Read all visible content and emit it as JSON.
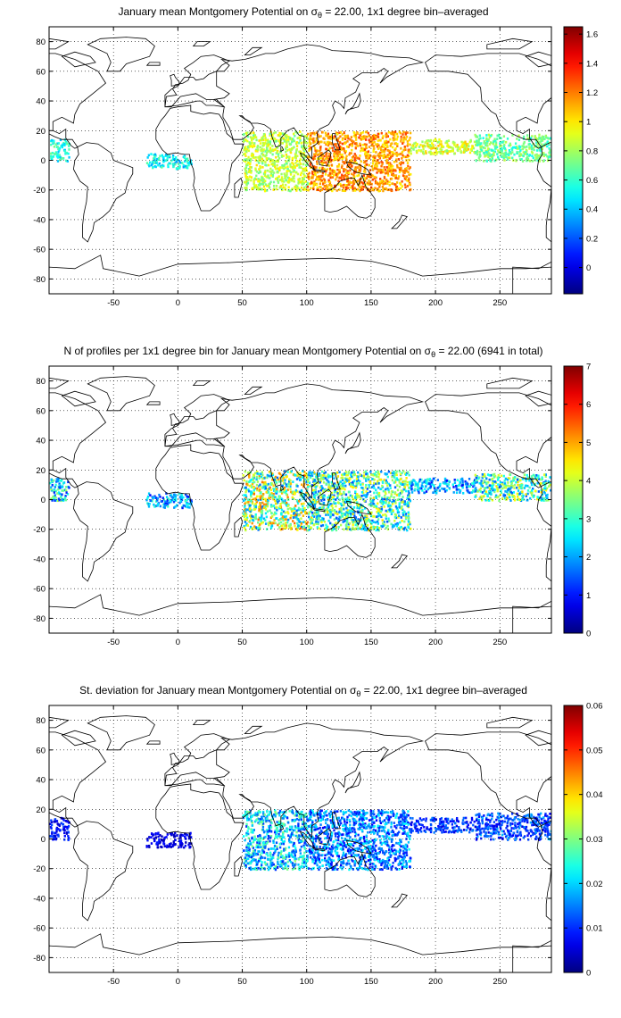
{
  "chart_data": [
    {
      "type": "heatmap",
      "title": {
        "before": "January mean Montgomery Potential on σ",
        "sub": "θ",
        "after": " = 22.00, 1x1 degree bin–averaged"
      },
      "x_ticks": [
        "-50",
        "0",
        "50",
        "100",
        "150",
        "200",
        "250"
      ],
      "x_tick_values": [
        -50,
        0,
        50,
        100,
        150,
        200,
        250
      ],
      "y_ticks": [
        "-80",
        "-60",
        "-40",
        "-20",
        "0",
        "20",
        "40",
        "60",
        "80"
      ],
      "y_tick_values": [
        -80,
        -60,
        -40,
        -20,
        0,
        20,
        40,
        60,
        80
      ],
      "xlim": [
        -100,
        290
      ],
      "ylim": [
        -90,
        90
      ],
      "grid": true,
      "colorbar": {
        "ticks": [
          "0",
          "0.2",
          "0.4",
          "0.6",
          "0.8",
          "1",
          "1.2",
          "1.4",
          "1.6"
        ],
        "tick_values": [
          0,
          0.2,
          0.4,
          0.6,
          0.8,
          1.0,
          1.2,
          1.4,
          1.6
        ],
        "min": -0.18,
        "max": 1.65,
        "colormap": "jet"
      },
      "data_regions": [
        {
          "lon": [
            -100,
            -85
          ],
          "lat": [
            0,
            15
          ],
          "value": 0.55
        },
        {
          "lon": [
            -25,
            10
          ],
          "lat": [
            -5,
            5
          ],
          "value": 0.5
        },
        {
          "lon": [
            50,
            100
          ],
          "lat": [
            -20,
            20
          ],
          "value": 0.85
        },
        {
          "lon": [
            100,
            180
          ],
          "lat": [
            -20,
            20
          ],
          "value": 1.15
        },
        {
          "lon": [
            180,
            230
          ],
          "lat": [
            5,
            15
          ],
          "value": 0.9
        },
        {
          "lon": [
            230,
            290
          ],
          "lat": [
            0,
            18
          ],
          "value": 0.7
        }
      ]
    },
    {
      "type": "heatmap",
      "title": {
        "before": "N of profiles per 1x1 degree bin for January mean Montgomery Potential on σ",
        "sub": "θ",
        "after": " = 22.00 (6941 in total)"
      },
      "x_ticks": [
        "-50",
        "0",
        "50",
        "100",
        "150",
        "200",
        "250"
      ],
      "x_tick_values": [
        -50,
        0,
        50,
        100,
        150,
        200,
        250
      ],
      "y_ticks": [
        "-80",
        "-60",
        "-40",
        "-20",
        "0",
        "20",
        "40",
        "60",
        "80"
      ],
      "y_tick_values": [
        -80,
        -60,
        -40,
        -20,
        0,
        20,
        40,
        60,
        80
      ],
      "xlim": [
        -100,
        290
      ],
      "ylim": [
        -90,
        90
      ],
      "grid": true,
      "colorbar": {
        "ticks": [
          "0",
          "1",
          "2",
          "3",
          "4",
          "5",
          "6",
          "7"
        ],
        "tick_values": [
          0,
          1,
          2,
          3,
          4,
          5,
          6,
          7
        ],
        "min": 0,
        "max": 7,
        "colormap": "jet"
      },
      "data_regions": [
        {
          "lon": [
            -100,
            -85
          ],
          "lat": [
            0,
            15
          ],
          "value": 2.5
        },
        {
          "lon": [
            -25,
            10
          ],
          "lat": [
            -5,
            5
          ],
          "value": 2.0
        },
        {
          "lon": [
            50,
            100
          ],
          "lat": [
            -20,
            20
          ],
          "value": 3.5
        },
        {
          "lon": [
            100,
            180
          ],
          "lat": [
            -20,
            20
          ],
          "value": 3.0
        },
        {
          "lon": [
            180,
            230
          ],
          "lat": [
            5,
            15
          ],
          "value": 2.0
        },
        {
          "lon": [
            230,
            290
          ],
          "lat": [
            0,
            18
          ],
          "value": 3.0
        }
      ]
    },
    {
      "type": "heatmap",
      "title": {
        "before": "St. deviation for January mean Montgomery Potential on σ",
        "sub": "θ",
        "after": " = 22.00, 1x1 degree bin–averaged"
      },
      "x_ticks": [
        "-50",
        "0",
        "50",
        "100",
        "150",
        "200",
        "250"
      ],
      "x_tick_values": [
        -50,
        0,
        50,
        100,
        150,
        200,
        250
      ],
      "y_ticks": [
        "-80",
        "-60",
        "-40",
        "-20",
        "0",
        "20",
        "40",
        "60",
        "80"
      ],
      "y_tick_values": [
        -80,
        -60,
        -40,
        -20,
        0,
        20,
        40,
        60,
        80
      ],
      "xlim": [
        -100,
        290
      ],
      "ylim": [
        -90,
        90
      ],
      "grid": true,
      "colorbar": {
        "ticks": [
          "0",
          "0.01",
          "0.02",
          "0.03",
          "0.04",
          "0.05",
          "0.06"
        ],
        "tick_values": [
          0,
          0.01,
          0.02,
          0.03,
          0.04,
          0.05,
          0.06
        ],
        "min": 0,
        "max": 0.06,
        "colormap": "jet"
      },
      "data_regions": [
        {
          "lon": [
            -100,
            -85
          ],
          "lat": [
            0,
            15
          ],
          "value": 0.008
        },
        {
          "lon": [
            -25,
            10
          ],
          "lat": [
            -5,
            5
          ],
          "value": 0.006
        },
        {
          "lon": [
            50,
            100
          ],
          "lat": [
            -20,
            20
          ],
          "value": 0.02
        },
        {
          "lon": [
            100,
            180
          ],
          "lat": [
            -20,
            20
          ],
          "value": 0.015
        },
        {
          "lon": [
            180,
            230
          ],
          "lat": [
            5,
            15
          ],
          "value": 0.01
        },
        {
          "lon": [
            230,
            290
          ],
          "lat": [
            0,
            18
          ],
          "value": 0.012
        }
      ]
    }
  ]
}
